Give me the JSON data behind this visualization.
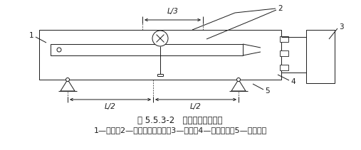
{
  "bg_color": "#ffffff",
  "line_color": "#1a1a1a",
  "title": "图 5.5.3-2   挠度测量装置示意",
  "caption": "1—框轴；2—千分表或位移计；3—试件；4—角状切片；5—滚动支座",
  "title_fontsize": 8.5,
  "caption_fontsize": 8,
  "fig_width": 5.07,
  "fig_height": 2.11,
  "dpi": 100
}
